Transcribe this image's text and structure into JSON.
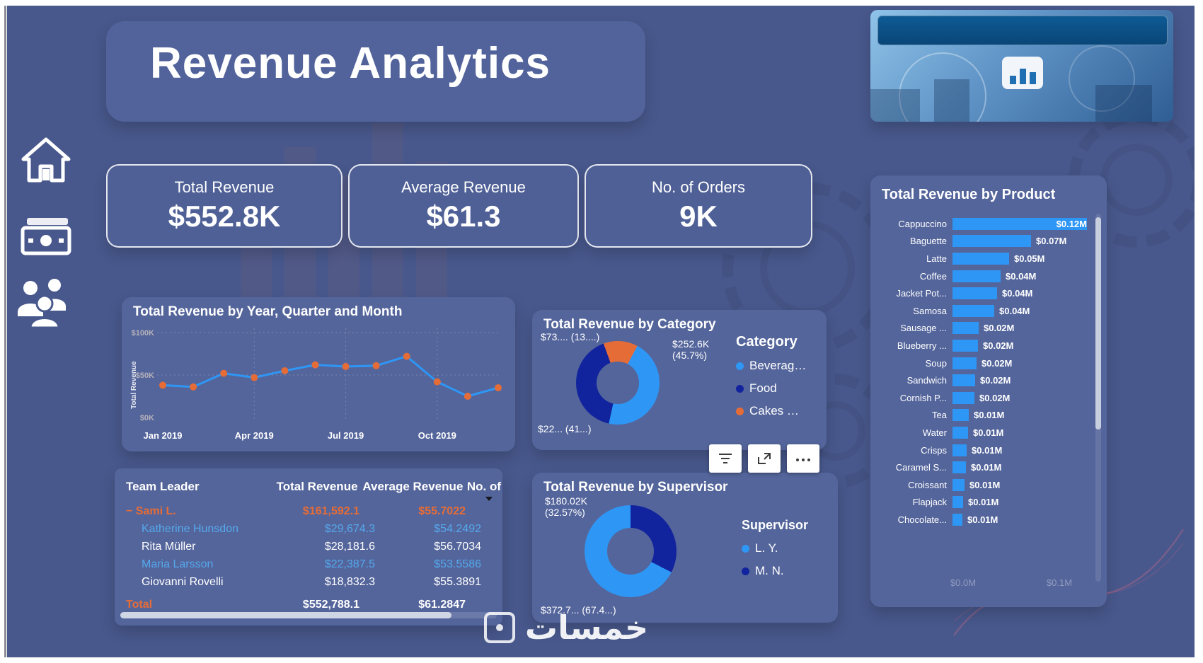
{
  "app": {
    "title": "Revenue Analytics",
    "watermark_text": "خمسات"
  },
  "colors": {
    "background": "#48588C",
    "card": "#54659B",
    "accent_blue": "#2E96F5",
    "dark_navy": "#12239E",
    "orange": "#E66C37",
    "light_blue_text": "#54A8EC"
  },
  "nav": {
    "items": [
      {
        "id": "home",
        "icon": "home-icon"
      },
      {
        "id": "revenue",
        "icon": "money-icon"
      },
      {
        "id": "team",
        "icon": "people-icon"
      }
    ]
  },
  "kpis": [
    {
      "label": "Total Revenue",
      "value": "$552.8K"
    },
    {
      "label": "Average Revenue",
      "value": "$61.3"
    },
    {
      "label": "No. of Orders",
      "value": "9K"
    }
  ],
  "visual_toolbar": {
    "buttons": [
      {
        "id": "filter",
        "icon": "filter-icon"
      },
      {
        "id": "focus-mode",
        "icon": "focus-mode-icon"
      },
      {
        "id": "more-options",
        "icon": "more-options-icon"
      }
    ]
  },
  "chart_data": [
    {
      "type": "line",
      "title": "Total Revenue by Year, Quarter and Month",
      "ylabel": "Total Revenue",
      "x": [
        "Jan 2019",
        "Feb 2019",
        "Mar 2019",
        "Apr 2019",
        "May 2019",
        "Jun 2019",
        "Jul 2019",
        "Aug 2019",
        "Sep 2019",
        "Oct 2019",
        "Nov 2019",
        "Dec 2019"
      ],
      "values_k": [
        38,
        36,
        52,
        47,
        55,
        62,
        60,
        61,
        72,
        42,
        25,
        35
      ],
      "x_ticks": [
        "Jan 2019",
        "Apr 2019",
        "Jul 2019",
        "Oct 2019"
      ],
      "x_tick_index": [
        0,
        3,
        6,
        9
      ],
      "y_ticks": [
        "$0K",
        "$50K",
        "$100K"
      ],
      "y_tick_values": [
        0,
        50,
        100
      ],
      "ylim": [
        0,
        100
      ],
      "grid": "dashed"
    },
    {
      "type": "pie",
      "title": "Total Revenue by Category",
      "legend_title": "Category",
      "start_angle_deg": -20,
      "segments": [
        {
          "label": "Cakes …",
          "pct": 13.3,
          "color_key": "orange"
        },
        {
          "label": "Beverag…",
          "pct": 45.7,
          "color_key": "accent_blue"
        },
        {
          "label": "Food",
          "pct": 41.0,
          "color_key": "dark_navy"
        }
      ],
      "legend": [
        {
          "label": "Beverag…",
          "color_key": "accent_blue"
        },
        {
          "label": "Food",
          "color_key": "dark_navy"
        },
        {
          "label": "Cakes …",
          "color_key": "orange"
        }
      ],
      "callouts": {
        "top_left": "$73.... (13....)",
        "right_line1": "$252.6K",
        "right_line2": "(45.7%)",
        "bottom_left": "$22... (41...)"
      }
    },
    {
      "type": "pie",
      "title": "Total Revenue by Supervisor",
      "legend_title": "Supervisor",
      "start_angle_deg": 0,
      "segments": [
        {
          "label": "M. N.",
          "pct": 32.57,
          "color_key": "dark_navy"
        },
        {
          "label": "L. Y.",
          "pct": 67.43,
          "color_key": "accent_blue"
        }
      ],
      "legend": [
        {
          "label": "L. Y.",
          "color_key": "accent_blue"
        },
        {
          "label": "M. N.",
          "color_key": "dark_navy"
        }
      ],
      "callouts": {
        "top_left_line1": "$180.02K",
        "top_left_line2": "(32.57%)",
        "bottom_left": "$372.7... (67.4...)"
      }
    },
    {
      "type": "bar",
      "title": "Total Revenue by Product",
      "orientation": "horizontal",
      "categories": [
        "Cappuccino",
        "Baguette",
        "Latte",
        "Coffee",
        "Jacket Pot...",
        "Samosa",
        "Sausage ...",
        "Blueberry ...",
        "Soup",
        "Sandwich",
        "Cornish P...",
        "Tea",
        "Water",
        "Crisps",
        "Caramel S...",
        "Croissant",
        "Flapjack",
        "Chocolate..."
      ],
      "values_m": [
        0.123,
        0.072,
        0.052,
        0.044,
        0.041,
        0.038,
        0.024,
        0.023,
        0.022,
        0.021,
        0.02,
        0.015,
        0.014,
        0.013,
        0.012,
        0.011,
        0.01,
        0.009
      ],
      "value_labels": [
        "$0.12M",
        "$0.07M",
        "$0.05M",
        "$0.04M",
        "$0.04M",
        "$0.04M",
        "$0.02M",
        "$0.02M",
        "$0.02M",
        "$0.02M",
        "$0.02M",
        "$0.01M",
        "$0.01M",
        "$0.01M",
        "$0.01M",
        "$0.01M",
        "$0.01M",
        "$0.01M"
      ],
      "x_axis_labels": [
        "$0.0M",
        "$0.1M"
      ],
      "xlim_m": [
        0,
        0.13
      ]
    },
    {
      "type": "table",
      "columns": [
        "Team Leader",
        "Total Revenue",
        "Average Revenue",
        "No. of"
      ],
      "rows": [
        {
          "name": "Sami L.",
          "prefix": "−",
          "total": "$161,592.1",
          "avg": "$55.7022",
          "style": "orange",
          "indent": false
        },
        {
          "name": "Katherine Hunsdon",
          "prefix": "",
          "total": "$29,674.3",
          "avg": "$54.2492",
          "style": "blue",
          "indent": true
        },
        {
          "name": "Rita Müller",
          "prefix": "",
          "total": "$28,181.6",
          "avg": "$56.7034",
          "style": "white",
          "indent": true
        },
        {
          "name": "Maria Larsson",
          "prefix": "",
          "total": "$22,387.5",
          "avg": "$53.5586",
          "style": "blue",
          "indent": true
        },
        {
          "name": "Giovanni Rovelli",
          "prefix": "",
          "total": "$18,832.3",
          "avg": "$55.3891",
          "style": "white",
          "indent": true
        }
      ],
      "total_row": {
        "name": "Total",
        "total": "$552,788.1",
        "avg": "$61.2847"
      }
    }
  ]
}
